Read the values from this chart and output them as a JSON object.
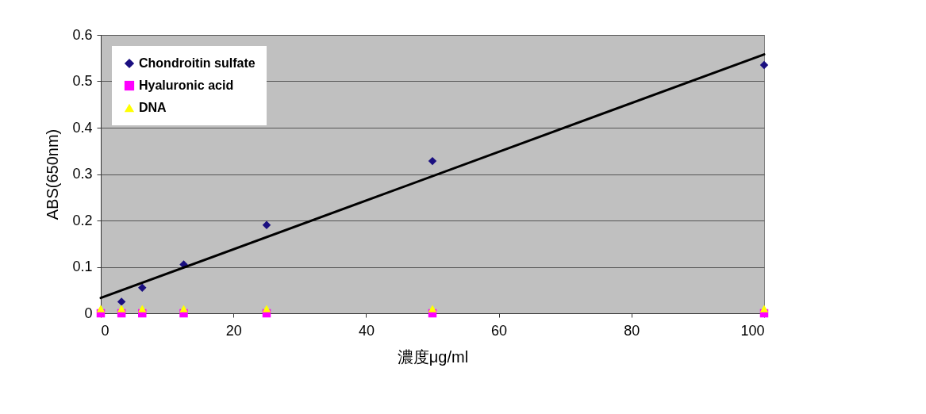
{
  "chart_data": {
    "type": "scatter",
    "xlabel": "濃度μg/ml",
    "ylabel": "ABS(650nm)",
    "x": [
      0,
      3.125,
      6.25,
      12.5,
      25,
      50,
      100
    ],
    "series": [
      {
        "name": "Chondroitin sulfate",
        "color": "#1a0f80",
        "marker": "diamond",
        "values": [
          null,
          0.025,
          0.055,
          0.105,
          0.19,
          0.328,
          0.535
        ]
      },
      {
        "name": "Hyaluronic acid",
        "color": "#ff00ff",
        "marker": "square",
        "values": [
          0,
          0,
          0,
          0,
          0,
          0,
          0
        ]
      },
      {
        "name": "DNA",
        "color": "#ffff00",
        "marker": "triangle",
        "values": [
          0.01,
          0.01,
          0.01,
          0.01,
          0.01,
          0.01,
          0.01
        ]
      },
      {
        "type": "line",
        "color": "#000000",
        "marker": "none",
        "x": [
          0,
          100
        ],
        "values": [
          0.033,
          0.558
        ]
      }
    ],
    "xlim": [
      0,
      100
    ],
    "xticks": [
      0,
      20,
      40,
      60,
      80,
      100
    ],
    "ylim": [
      0,
      0.6
    ],
    "yticks": [
      0,
      0.1,
      0.2,
      0.3,
      0.4,
      0.5,
      0.6
    ],
    "grid": "y",
    "legend": "top left"
  }
}
